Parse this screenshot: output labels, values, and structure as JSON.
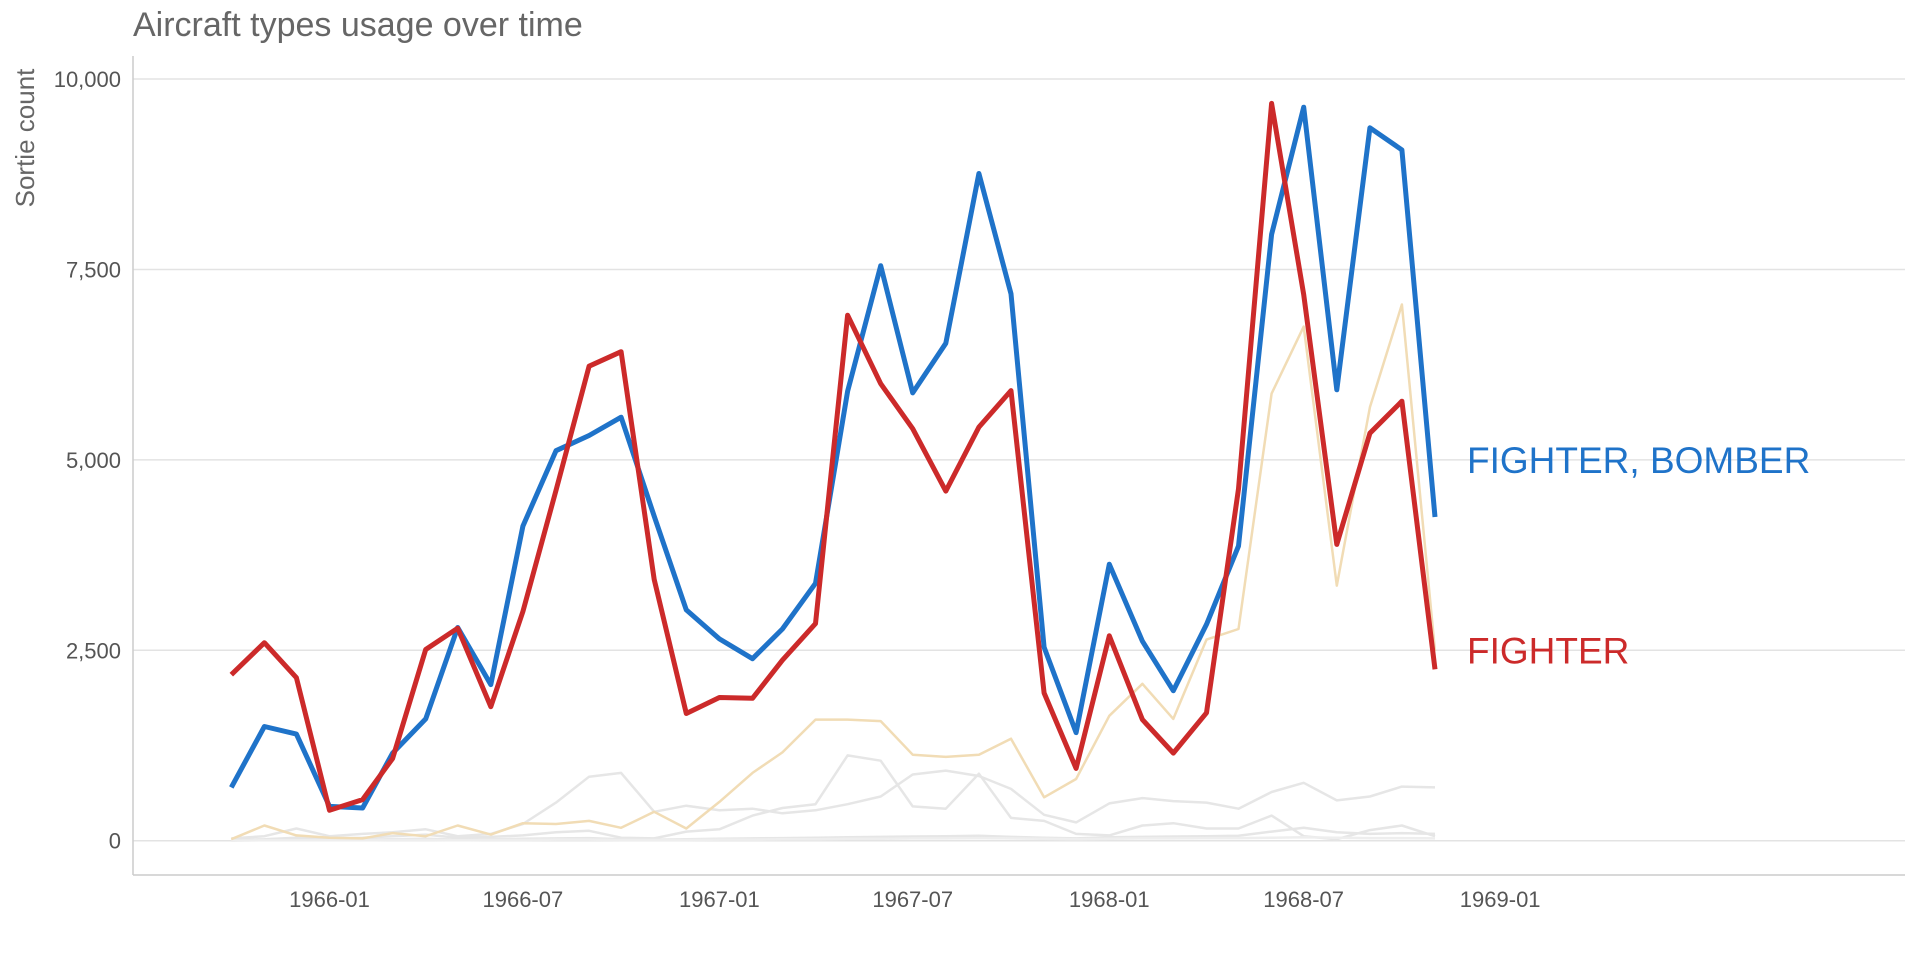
{
  "chart_data": {
    "type": "line",
    "title": "Aircraft types usage over time",
    "ylabel": "Sortie count",
    "xlabel": "",
    "ylim": [
      -450,
      10250
    ],
    "xlim": [
      "1965-07-01",
      "1970-01-15"
    ],
    "yticks": [
      0,
      2500,
      5000,
      7500,
      10000
    ],
    "ytick_labels": [
      "0",
      "2,500",
      "5,000",
      "7,500",
      "10,000"
    ],
    "xticks": [
      "1966-01-01",
      "1966-07-01",
      "1967-01-01",
      "1967-07-01",
      "1968-01-01",
      "1968-07-01",
      "1969-01-01"
    ],
    "xtick_labels": [
      "1966-01",
      "1966-07",
      "1967-01",
      "1967-07",
      "1968-01",
      "1968-07",
      "1969-01"
    ],
    "grid": "horizontal",
    "x": [
      "1965-10-01",
      "1965-11-01",
      "1965-12-01",
      "1966-01-01",
      "1966-02-01",
      "1966-03-01",
      "1966-04-01",
      "1966-05-01",
      "1966-06-01",
      "1966-07-01",
      "1966-08-01",
      "1966-09-01",
      "1966-10-01",
      "1966-11-01",
      "1966-12-01",
      "1967-01-01",
      "1967-02-01",
      "1967-03-01",
      "1967-04-01",
      "1967-05-01",
      "1967-06-01",
      "1967-07-01",
      "1967-08-01",
      "1967-09-01",
      "1967-10-01",
      "1967-11-01",
      "1967-12-01",
      "1968-01-01",
      "1968-02-01",
      "1968-03-01",
      "1968-04-01",
      "1968-05-01",
      "1968-06-01",
      "1968-07-01",
      "1968-08-01",
      "1968-09-01",
      "1968-10-01",
      "1968-11-01"
    ],
    "series": [
      {
        "name": "",
        "color": "#e6e6e6",
        "highlight": false,
        "values": [
          30,
          60,
          160,
          60,
          90,
          110,
          150,
          60,
          90,
          220,
          500,
          840,
          890,
          380,
          460,
          400,
          420,
          360,
          400,
          480,
          580,
          870,
          920,
          850,
          680,
          340,
          240,
          490,
          560,
          520,
          500,
          420,
          640,
          760,
          530,
          580,
          710,
          700
        ]
      },
      {
        "name": "",
        "color": "#e6e6e6",
        "highlight": false,
        "values": [
          10,
          20,
          40,
          30,
          40,
          60,
          80,
          40,
          50,
          70,
          110,
          130,
          40,
          30,
          120,
          150,
          330,
          430,
          480,
          1120,
          1050,
          450,
          420,
          880,
          300,
          260,
          90,
          70,
          200,
          230,
          160,
          160,
          330,
          60,
          20,
          140,
          200,
          60
        ]
      },
      {
        "name": "",
        "color": "#e6e6e6",
        "highlight": false,
        "values": [
          5,
          10,
          15,
          10,
          15,
          20,
          25,
          15,
          20,
          25,
          30,
          35,
          20,
          15,
          20,
          25,
          30,
          35,
          40,
          45,
          50,
          55,
          60,
          65,
          50,
          40,
          30,
          45,
          50,
          55,
          60,
          65,
          120,
          170,
          110,
          90,
          100,
          90
        ]
      },
      {
        "name": "",
        "color": "#eeeeee",
        "highlight": false,
        "values": [
          0,
          5,
          5,
          5,
          5,
          10,
          10,
          5,
          10,
          10,
          15,
          15,
          10,
          10,
          10,
          15,
          15,
          20,
          20,
          25,
          25,
          30,
          30,
          35,
          30,
          25,
          20,
          25,
          30,
          30,
          35,
          35,
          40,
          45,
          40,
          35,
          35,
          30
        ]
      },
      {
        "name": "",
        "color": "#f1dcb5",
        "highlight": false,
        "values": [
          20,
          200,
          70,
          40,
          30,
          100,
          60,
          200,
          80,
          230,
          220,
          260,
          170,
          380,
          160,
          510,
          890,
          1160,
          1590,
          1590,
          1570,
          1130,
          1100,
          1130,
          1340,
          570,
          810,
          1640,
          2060,
          1600,
          2640,
          2780,
          5870,
          6750,
          3350,
          5690,
          7040,
          2490
        ]
      },
      {
        "name": "FIGHTER, BOMBER",
        "color": "#1f73c9",
        "highlight": true,
        "values": [
          700,
          1500,
          1400,
          450,
          430,
          1150,
          1600,
          2800,
          2050,
          4130,
          5120,
          5320,
          5560,
          4260,
          3030,
          2650,
          2390,
          2780,
          3380,
          5900,
          7550,
          5880,
          6530,
          8760,
          7180,
          2540,
          1420,
          3630,
          2620,
          1970,
          2840,
          3870,
          7960,
          9630,
          5920,
          9360,
          9070,
          4250
        ]
      },
      {
        "name": "FIGHTER",
        "color": "#cc2a2a",
        "highlight": true,
        "values": [
          2180,
          2600,
          2140,
          400,
          540,
          1080,
          2510,
          2790,
          1760,
          3010,
          4600,
          6230,
          6420,
          3430,
          1670,
          1880,
          1870,
          2370,
          2850,
          6900,
          6000,
          5410,
          4590,
          5430,
          5910,
          1940,
          950,
          2690,
          1590,
          1150,
          1680,
          4620,
          9680,
          7170,
          3890,
          5350,
          5770,
          2250
        ]
      }
    ]
  }
}
